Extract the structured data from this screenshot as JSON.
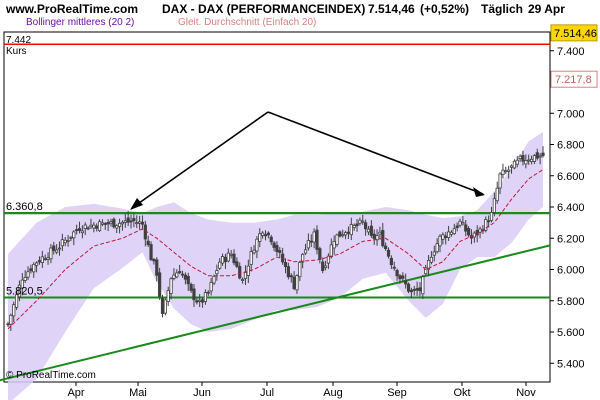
{
  "header": {
    "source": "www.ProRealTime.com",
    "instrument": "DAX - DAX (PERFORMANCEINDEX)",
    "last_value": "7.514,46",
    "change": "(+0,52%)",
    "period": "Täglich",
    "date": "29 Apr"
  },
  "legend": {
    "bollinger": "Bollinger mittleres (20 2)",
    "sma": "Gleit. Durchschnitt (Einfach 20)"
  },
  "watermark": "© ProRealTime.com",
  "kurs_label": "Kurs",
  "colors": {
    "candle": "#404040",
    "band_fill": "#d9ccf7",
    "sma": "#c0163c",
    "green_line": "#1a8a1a",
    "red_line": "#ff0000",
    "arrow": "#000000",
    "bollinger_legend": "#6a0dad",
    "sma_legend": "#d88080"
  },
  "chart_data": {
    "type": "candlestick",
    "title": "DAX - DAX (PERFORMANCEINDEX)",
    "x_months": [
      "Apr",
      "Mai",
      "Jun",
      "Jul",
      "Aug",
      "Sep",
      "Okt",
      "Nov"
    ],
    "y_ticks": [
      "5.400",
      "5.600",
      "5.800",
      "6.000",
      "6.200",
      "6.400",
      "6.600",
      "6.800",
      "7.000",
      "7.200",
      "7.400"
    ],
    "ylim": [
      5280,
      7520
    ],
    "price_labels": {
      "last": "7.514,46",
      "secondary": "7.217,8",
      "red_line": "7.442",
      "upper_level": "6.360,8",
      "lower_level": "5.820,5"
    },
    "levels": {
      "red": 7442,
      "upper_green": 6360.8,
      "lower_green": 5820.5,
      "secondary": 7217.8
    },
    "trendline": {
      "from": [
        "Mär",
        5250
      ],
      "to": [
        "Nov",
        6150
      ]
    },
    "arrow_path": [
      [
        "Apr/Mai",
        6370
      ],
      [
        "Jul",
        6960
      ],
      [
        "Okt",
        6420
      ]
    ],
    "close_keypoints": [
      [
        0,
        5650
      ],
      [
        5,
        5950
      ],
      [
        10,
        6050
      ],
      [
        18,
        6150
      ],
      [
        25,
        6270
      ],
      [
        32,
        6290
      ],
      [
        40,
        6300
      ],
      [
        44,
        6310
      ],
      [
        47,
        6290
      ],
      [
        50,
        6080
      ],
      [
        52,
        5980
      ],
      [
        54,
        5700
      ],
      [
        57,
        5950
      ],
      [
        60,
        6000
      ],
      [
        64,
        5850
      ],
      [
        67,
        5780
      ],
      [
        70,
        5850
      ],
      [
        74,
        6050
      ],
      [
        78,
        6100
      ],
      [
        82,
        5930
      ],
      [
        86,
        6150
      ],
      [
        89,
        6260
      ],
      [
        92,
        6200
      ],
      [
        96,
        6050
      ],
      [
        100,
        5900
      ],
      [
        103,
        6100
      ],
      [
        107,
        6220
      ],
      [
        110,
        6000
      ],
      [
        114,
        6200
      ],
      [
        118,
        6250
      ],
      [
        121,
        6270
      ],
      [
        124,
        6300
      ],
      [
        127,
        6200
      ],
      [
        130,
        6220
      ],
      [
        134,
        6050
      ],
      [
        137,
        5950
      ],
      [
        141,
        5850
      ],
      [
        144,
        5870
      ],
      [
        148,
        6100
      ],
      [
        151,
        6200
      ],
      [
        155,
        6250
      ],
      [
        158,
        6300
      ],
      [
        162,
        6200
      ],
      [
        165,
        6250
      ],
      [
        169,
        6350
      ],
      [
        172,
        6600
      ],
      [
        176,
        6650
      ],
      [
        179,
        6700
      ],
      [
        183,
        6720
      ],
      [
        187,
        6730
      ]
    ],
    "sma_keypoints": [
      [
        0,
        5620
      ],
      [
        10,
        5800
      ],
      [
        20,
        6000
      ],
      [
        30,
        6150
      ],
      [
        40,
        6200
      ],
      [
        47,
        6260
      ],
      [
        52,
        6200
      ],
      [
        58,
        6110
      ],
      [
        64,
        6020
      ],
      [
        70,
        5960
      ],
      [
        78,
        5960
      ],
      [
        86,
        6000
      ],
      [
        94,
        6080
      ],
      [
        100,
        6050
      ],
      [
        108,
        6060
      ],
      [
        116,
        6100
      ],
      [
        124,
        6180
      ],
      [
        132,
        6200
      ],
      [
        140,
        6100
      ],
      [
        146,
        6000
      ],
      [
        152,
        6050
      ],
      [
        158,
        6180
      ],
      [
        164,
        6230
      ],
      [
        170,
        6300
      ],
      [
        176,
        6450
      ],
      [
        182,
        6580
      ],
      [
        187,
        6640
      ]
    ],
    "band_keypoints": [
      [
        0,
        6100,
        5140
      ],
      [
        10,
        6300,
        5300
      ],
      [
        20,
        6400,
        5600
      ],
      [
        30,
        6420,
        5880
      ],
      [
        40,
        6390,
        6010
      ],
      [
        47,
        6360,
        6110
      ],
      [
        52,
        6400,
        5920
      ],
      [
        58,
        6430,
        5750
      ],
      [
        64,
        6360,
        5650
      ],
      [
        70,
        6320,
        5600
      ],
      [
        78,
        6300,
        5620
      ],
      [
        86,
        6300,
        5680
      ],
      [
        94,
        6320,
        5740
      ],
      [
        100,
        6350,
        5740
      ],
      [
        108,
        6350,
        5760
      ],
      [
        116,
        6360,
        5820
      ],
      [
        124,
        6370,
        5940
      ],
      [
        132,
        6400,
        5980
      ],
      [
        140,
        6380,
        5800
      ],
      [
        146,
        6350,
        5690
      ],
      [
        152,
        6330,
        5780
      ],
      [
        158,
        6340,
        6000
      ],
      [
        164,
        6380,
        6080
      ],
      [
        170,
        6500,
        6080
      ],
      [
        176,
        6650,
        6170
      ],
      [
        182,
        6820,
        6320
      ],
      [
        187,
        6880,
        6400
      ]
    ]
  }
}
